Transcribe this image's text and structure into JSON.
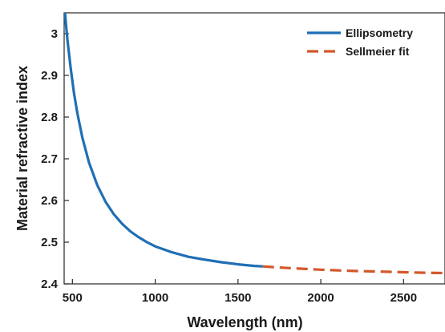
{
  "chart_data": {
    "type": "line",
    "xlabel": "Wavelength (nm)",
    "ylabel": "Material refractive index",
    "xlim": [
      450,
      2750
    ],
    "ylim": [
      2.4,
      3.05
    ],
    "xticks": [
      500,
      1000,
      1500,
      2000,
      2500
    ],
    "yticks": [
      2.4,
      2.5,
      2.6,
      2.7,
      2.8,
      2.9,
      3
    ],
    "xtick_labels": [
      "500",
      "1000",
      "1500",
      "2000",
      "2500"
    ],
    "ytick_labels": [
      "2.4",
      "2.5",
      "2.6",
      "2.7",
      "2.8",
      "2.9",
      "3"
    ],
    "grid": false,
    "legend_position": "top-right",
    "series": [
      {
        "name": "Ellipsometry",
        "style": "solid",
        "color": "#1f6fb5",
        "x": [
          455,
          470,
          490,
          510,
          530,
          560,
          600,
          650,
          700,
          750,
          800,
          850,
          900,
          950,
          1000,
          1100,
          1200,
          1300,
          1400,
          1500,
          1600,
          1650
        ],
        "y": [
          3.05,
          2.985,
          2.915,
          2.856,
          2.809,
          2.751,
          2.691,
          2.637,
          2.597,
          2.567,
          2.544,
          2.526,
          2.512,
          2.5,
          2.49,
          2.476,
          2.465,
          2.458,
          2.452,
          2.447,
          2.443,
          2.442
        ]
      },
      {
        "name": "Sellmeier fit",
        "style": "dashed",
        "color": "#d2582a",
        "x": [
          1650,
          1800,
          2000,
          2200,
          2400,
          2600,
          2750
        ],
        "y": [
          2.442,
          2.438,
          2.434,
          2.431,
          2.429,
          2.427,
          2.426
        ]
      }
    ]
  }
}
